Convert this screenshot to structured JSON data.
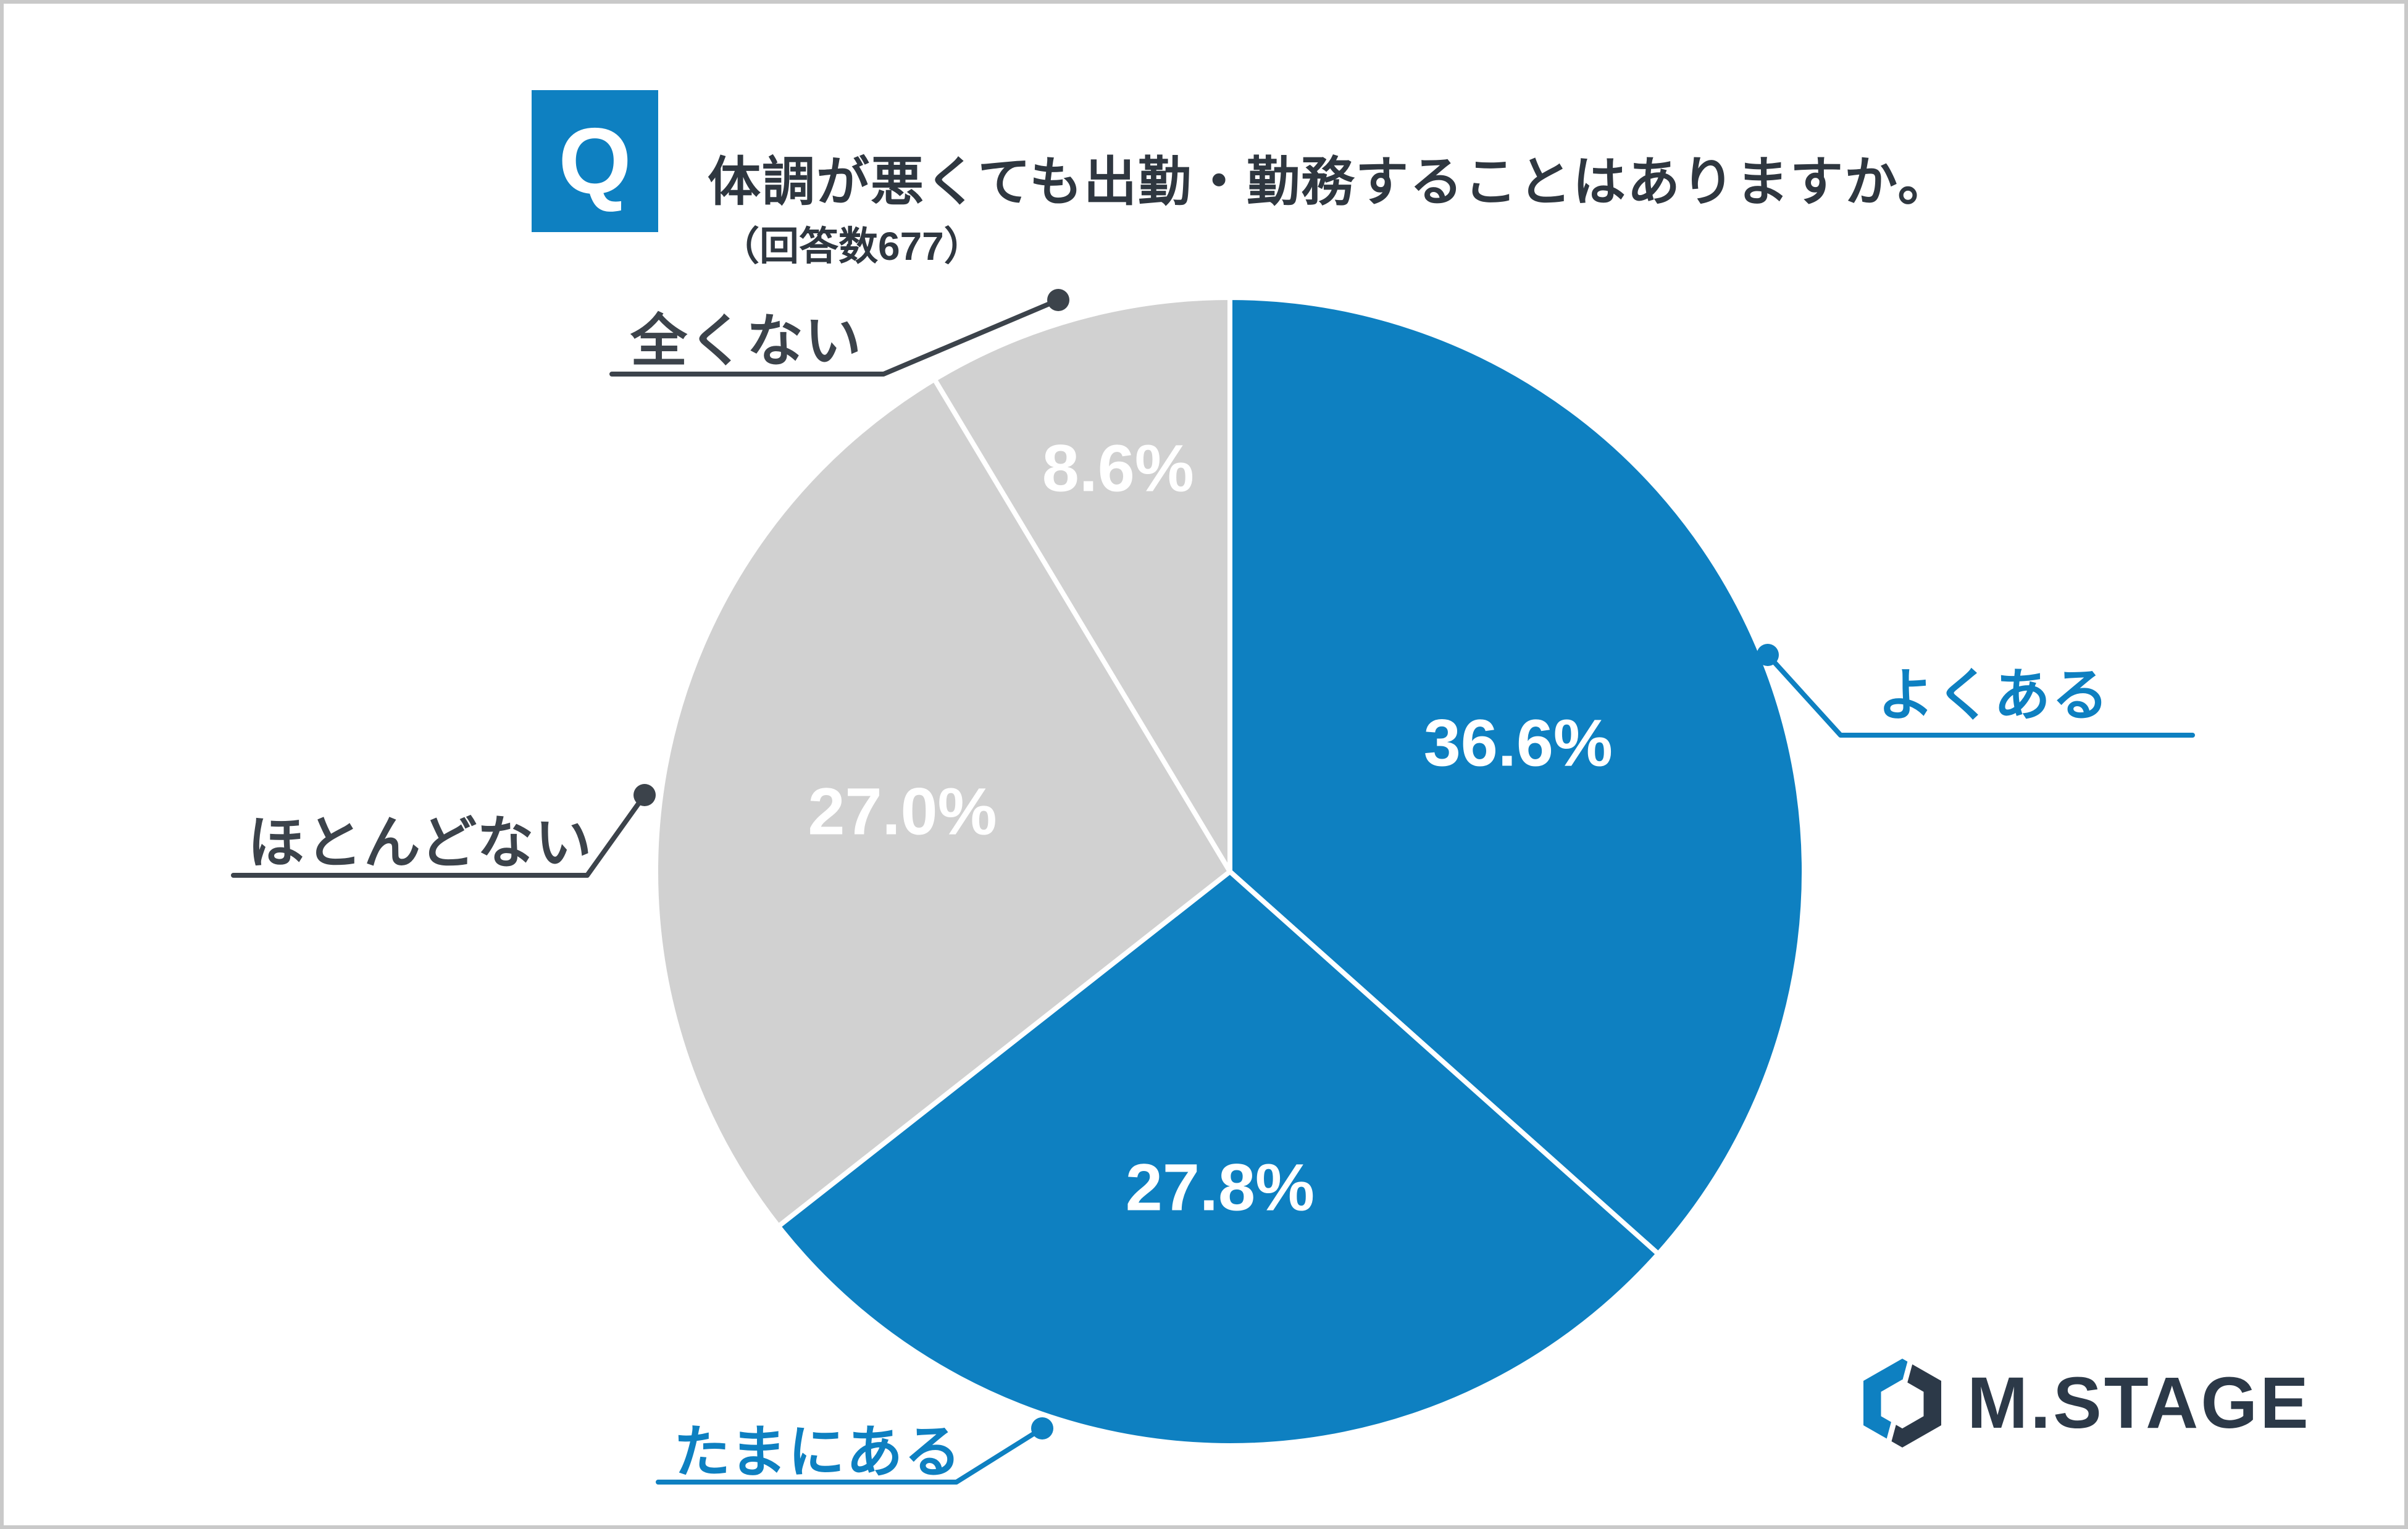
{
  "header": {
    "badge": "Q",
    "question": "体調が悪くても出勤・勤務することはありますか。",
    "response_count": "（回答数677）"
  },
  "chart_data": {
    "type": "pie",
    "title": "体調が悪くても出勤・勤務することはありますか。",
    "responses": 677,
    "start_angle": "top",
    "direction": "clockwise",
    "value_suffix": "%",
    "slices": [
      {
        "label": "よくある",
        "value": 36.6,
        "value_label": "36.6%",
        "color": "#0e80c1",
        "label_color": "#0e80c1"
      },
      {
        "label": "たまにある",
        "value": 27.8,
        "value_label": "27.8%",
        "color": "#0e80c1",
        "label_color": "#0e80c1"
      },
      {
        "label": "ほとんどない",
        "value": 27.0,
        "value_label": "27.0%",
        "color": "#d1d1d1",
        "label_color": "#3c434b"
      },
      {
        "label": "全くない",
        "value": 8.6,
        "value_label": "8.6%",
        "color": "#d1d1d1",
        "label_color": "#3c434b"
      }
    ]
  },
  "logo": {
    "text": "M.STAGE",
    "mark_blue": "#0e80c1",
    "mark_dark": "#2c3948"
  },
  "colors": {
    "accent_blue": "#0e80c1",
    "slice_gray": "#d1d1d1",
    "text_dark": "#2f3740",
    "border_gray": "#c9c9c9"
  }
}
